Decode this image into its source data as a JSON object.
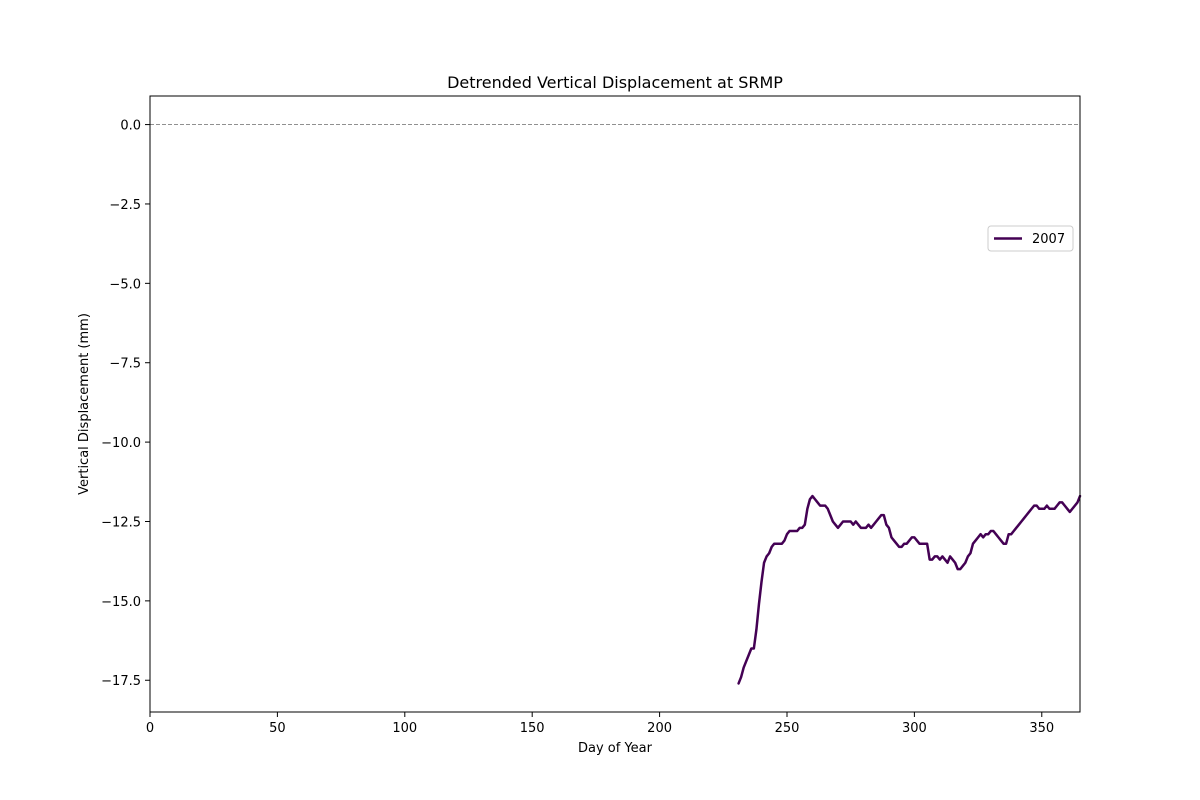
{
  "chart_data": {
    "type": "line",
    "title": "Detrended Vertical Displacement at SRMP",
    "xlabel": "Day of Year",
    "ylabel": "Vertical Displacement (mm)",
    "xlim": [
      0,
      365
    ],
    "ylim": [
      -18.5,
      0.9
    ],
    "xticks": [
      0,
      50,
      100,
      150,
      200,
      250,
      300,
      350
    ],
    "yticks": [
      0.0,
      -2.5,
      -5.0,
      -7.5,
      -10.0,
      -12.5,
      -15.0,
      -17.5
    ],
    "ytick_labels": [
      "0.0",
      "−2.5",
      "−5.0",
      "−7.5",
      "−10.0",
      "−12.5",
      "−15.0",
      "−17.5"
    ],
    "reference_line": {
      "y": 0,
      "style": "dashed",
      "color": "#808080"
    },
    "grid": false,
    "legend": {
      "placement": "right"
    },
    "series": [
      {
        "name": "2007",
        "color": "#440154",
        "x": [
          231,
          232,
          233,
          234,
          235,
          236,
          237,
          238,
          239,
          240,
          241,
          242,
          243,
          244,
          245,
          246,
          247,
          248,
          249,
          250,
          251,
          252,
          253,
          254,
          255,
          256,
          257,
          258,
          259,
          260,
          261,
          262,
          263,
          264,
          265,
          266,
          267,
          268,
          269,
          270,
          271,
          272,
          273,
          274,
          275,
          276,
          277,
          278,
          279,
          280,
          281,
          282,
          283,
          284,
          285,
          286,
          287,
          288,
          289,
          290,
          291,
          292,
          293,
          294,
          295,
          296,
          297,
          298,
          299,
          300,
          301,
          302,
          303,
          304,
          305,
          306,
          307,
          308,
          309,
          310,
          311,
          312,
          313,
          314,
          315,
          316,
          317,
          318,
          319,
          320,
          321,
          322,
          323,
          324,
          325,
          326,
          327,
          328,
          329,
          330,
          331,
          332,
          333,
          334,
          335,
          336,
          337,
          338,
          339,
          340,
          341,
          342,
          343,
          344,
          345,
          346,
          347,
          348,
          349,
          350,
          351,
          352,
          353,
          354,
          355,
          356,
          357,
          358,
          359,
          360,
          361,
          362,
          363,
          364,
          365
        ],
        "y": [
          -17.6,
          -17.4,
          -17.1,
          -16.9,
          -16.7,
          -16.5,
          -16.5,
          -15.9,
          -15.1,
          -14.4,
          -13.8,
          -13.6,
          -13.5,
          -13.3,
          -13.2,
          -13.2,
          -13.2,
          -13.2,
          -13.1,
          -12.9,
          -12.8,
          -12.8,
          -12.8,
          -12.8,
          -12.7,
          -12.7,
          -12.6,
          -12.1,
          -11.8,
          -11.7,
          -11.8,
          -11.9,
          -12.0,
          -12.0,
          -12.0,
          -12.1,
          -12.3,
          -12.5,
          -12.6,
          -12.7,
          -12.6,
          -12.5,
          -12.5,
          -12.5,
          -12.5,
          -12.6,
          -12.5,
          -12.6,
          -12.7,
          -12.7,
          -12.7,
          -12.6,
          -12.7,
          -12.6,
          -12.5,
          -12.4,
          -12.3,
          -12.3,
          -12.6,
          -12.7,
          -13.0,
          -13.1,
          -13.2,
          -13.3,
          -13.3,
          -13.2,
          -13.2,
          -13.1,
          -13.0,
          -13.0,
          -13.1,
          -13.2,
          -13.2,
          -13.2,
          -13.2,
          -13.7,
          -13.7,
          -13.6,
          -13.6,
          -13.7,
          -13.6,
          -13.7,
          -13.8,
          -13.6,
          -13.7,
          -13.8,
          -14.0,
          -14.0,
          -13.9,
          -13.8,
          -13.6,
          -13.5,
          -13.2,
          -13.1,
          -13.0,
          -12.9,
          -13.0,
          -12.9,
          -12.9,
          -12.8,
          -12.8,
          -12.9,
          -13.0,
          -13.1,
          -13.2,
          -13.2,
          -12.9,
          -12.9,
          -12.8,
          -12.7,
          -12.6,
          -12.5,
          -12.4,
          -12.3,
          -12.2,
          -12.1,
          -12.0,
          -12.0,
          -12.1,
          -12.1,
          -12.1,
          -12.0,
          -12.1,
          -12.1,
          -12.1,
          -12.0,
          -11.9,
          -11.9,
          -12.0,
          -12.1,
          -12.2,
          -12.1,
          -12.0,
          -11.9,
          -11.7
        ]
      }
    ]
  }
}
